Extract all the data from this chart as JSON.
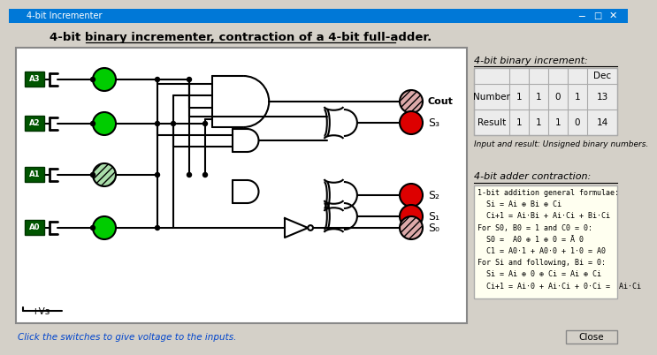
{
  "title": "4-bit binary incrementer, contraction of a 4-bit full-adder.",
  "window_title": "4-bit Incrementer",
  "bg_color": "#d4d0c8",
  "titlebar_color": "#0078d7",
  "table_rows": [
    [
      "Number",
      "1",
      "1",
      "0",
      "1",
      "13"
    ],
    [
      "Result",
      "1",
      "1",
      "1",
      "0",
      "14"
    ]
  ],
  "note_text": "Input and result: Unsigned binary numbers.",
  "formula_lines": [
    "1-bit addition general formulae:",
    "  Si = Ai ⊕ Bi ⊕ Ci",
    "  Ci+1 = Ai·Bi + Ai·Ci + Bi·Ci",
    "For S0, B0 = 1 and C0 = 0:",
    "  S0 =  A0 ⊕ 1 ⊕ 0 = Ā 0",
    "  C1 = A0·1 + A0·0 + 1·0 = A0",
    "For Si and following, Bi = 0:",
    "  Si = Ai ⊕ 0 ⊕ Ci = Ai ⊕ Ci",
    "  Ci+1 = Ai·0 + Ai·Ci + 0·Ci =  Ai·Ci"
  ],
  "led_green_on": "#00cc00",
  "led_green_off": "#aaddaa",
  "led_red_on": "#dd0000",
  "led_red_off": "#ddaaaa",
  "input_labels": [
    "A3",
    "A2",
    "A1",
    "A0"
  ],
  "input_active": [
    true,
    true,
    false,
    true
  ],
  "output_active_cout": false,
  "output_active_s": [
    true,
    true,
    true,
    false
  ]
}
